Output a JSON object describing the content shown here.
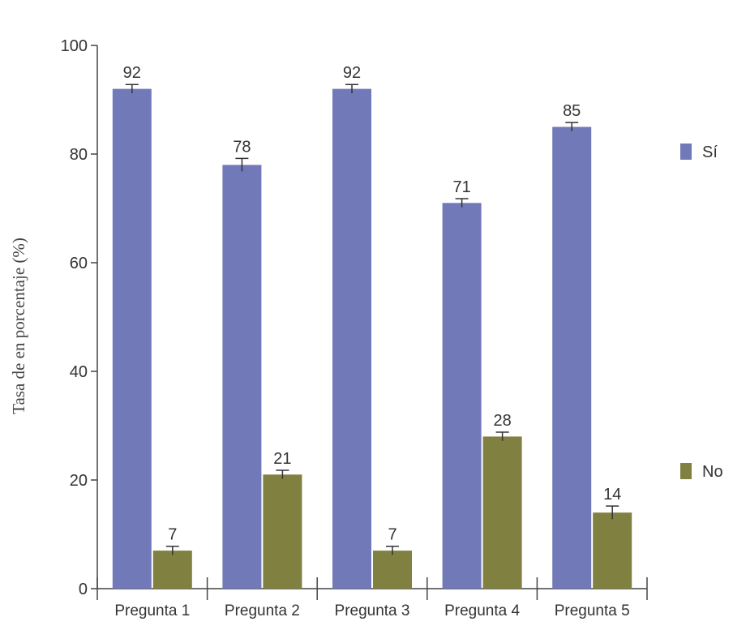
{
  "chart_data": {
    "type": "bar",
    "categories": [
      "Pregunta 1",
      "Pregunta 2",
      "Pregunta 3",
      "Pregunta 4",
      "Pregunta 5"
    ],
    "series": [
      {
        "name": "Sí",
        "values": [
          92,
          78,
          92,
          71,
          85
        ],
        "color": "#7279b8",
        "errors": [
          0.8,
          1.2,
          0.8,
          0.8,
          0.8
        ]
      },
      {
        "name": "No",
        "values": [
          7,
          21,
          7,
          28,
          14
        ],
        "color": "#808040",
        "errors": [
          0.8,
          0.8,
          0.8,
          0.8,
          1.2
        ]
      }
    ],
    "value_labels": [
      [
        "92",
        "78",
        "92",
        "71",
        "85"
      ],
      [
        "7",
        "21",
        "7",
        "28",
        "14"
      ]
    ],
    "ylabel": "Tasa de en porcentaje (%)",
    "xlabel": "",
    "title": "",
    "ylim": [
      0,
      100
    ],
    "yticks": [
      0,
      20,
      40,
      60,
      80,
      100
    ],
    "ytick_labels": [
      "0",
      "20",
      "40",
      "60",
      "80",
      "100"
    ],
    "grid": false,
    "legend_position": "right"
  }
}
